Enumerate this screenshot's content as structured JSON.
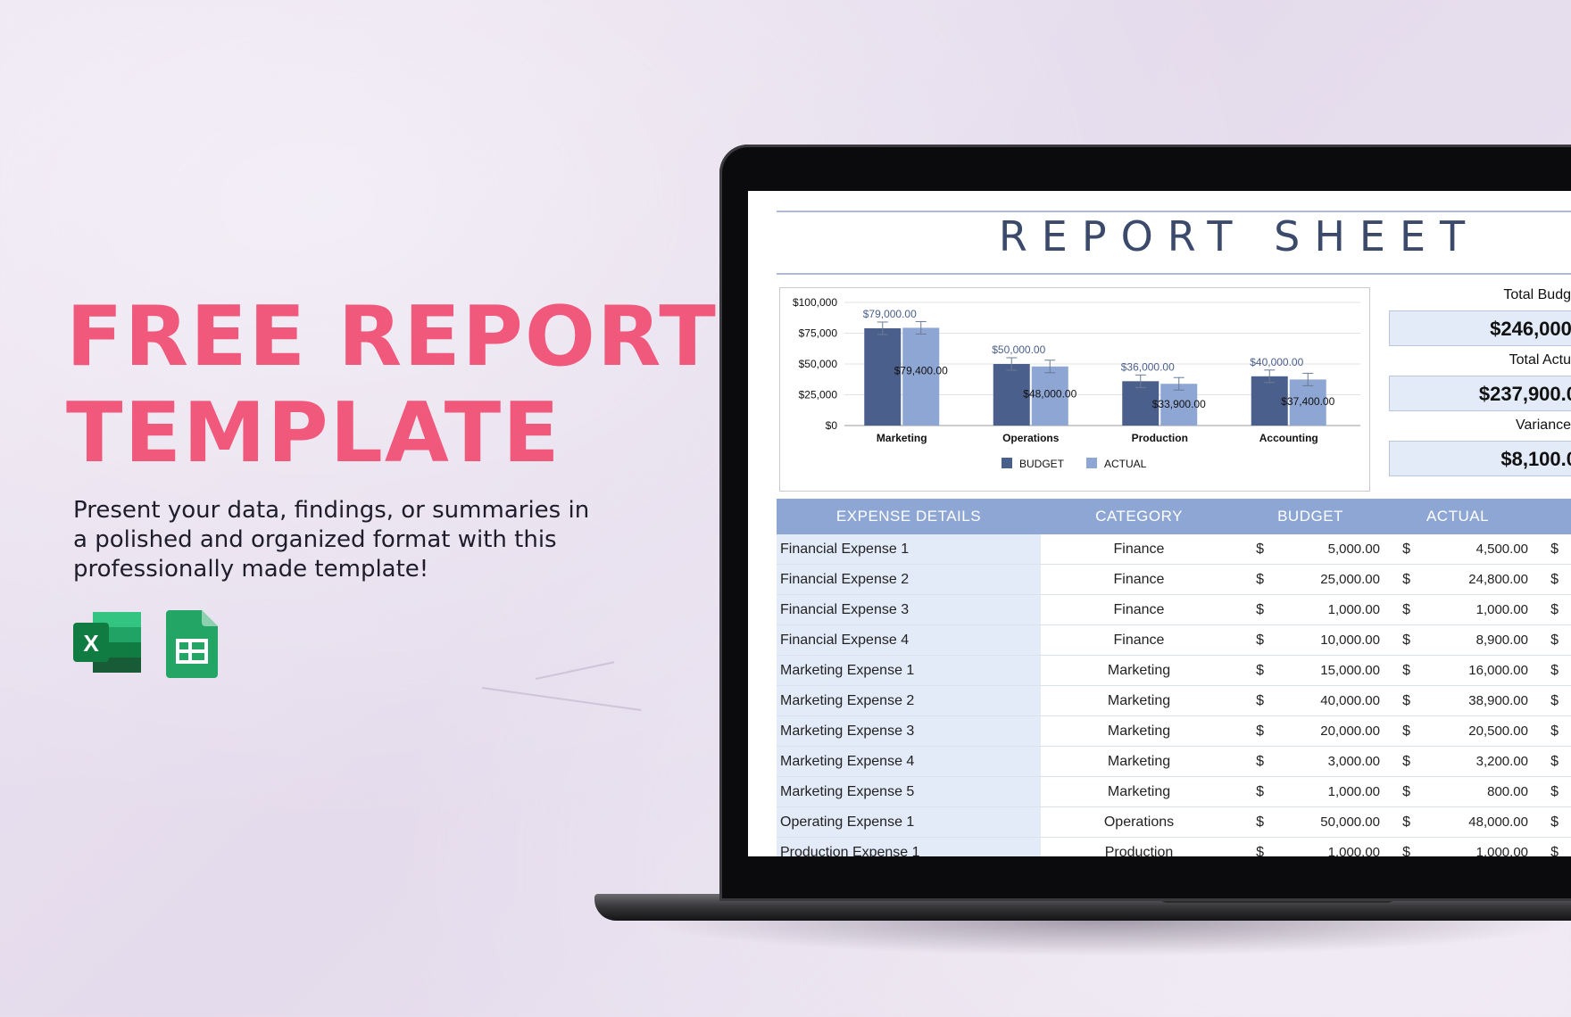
{
  "promo": {
    "headline_line1": "FREE REPORT",
    "headline_line2": "TEMPLATE",
    "tagline": "Present your data, findings, or summaries in a polished and organized format with this professionally made template!",
    "icons": [
      "excel-icon",
      "google-sheets-icon"
    ]
  },
  "sheet": {
    "title": "REPORT SHEET",
    "summary": {
      "total_budget_label": "Total Budg",
      "total_budget_value": "$246,000.",
      "total_actual_label": "Total Actu",
      "total_actual_value": "$237,900.0",
      "variance_label": "Variance",
      "variance_value": "$8,100.0"
    },
    "table": {
      "headers": [
        "EXPENSE DETAILS",
        "CATEGORY",
        "BUDGET",
        "ACTUAL"
      ],
      "rows": [
        {
          "name": "Financial Expense 1",
          "category": "Finance",
          "budget_symbol": "$",
          "budget": "5,000.00",
          "actual_symbol": "$",
          "actual": "4,500.00",
          "extra_symbol": "$"
        },
        {
          "name": "Financial Expense 2",
          "category": "Finance",
          "budget_symbol": "$",
          "budget": "25,000.00",
          "actual_symbol": "$",
          "actual": "24,800.00",
          "extra_symbol": "$"
        },
        {
          "name": "Financial Expense 3",
          "category": "Finance",
          "budget_symbol": "$",
          "budget": "1,000.00",
          "actual_symbol": "$",
          "actual": "1,000.00",
          "extra_symbol": "$"
        },
        {
          "name": "Financial Expense 4",
          "category": "Finance",
          "budget_symbol": "$",
          "budget": "10,000.00",
          "actual_symbol": "$",
          "actual": "8,900.00",
          "extra_symbol": "$"
        },
        {
          "name": "Marketing Expense 1",
          "category": "Marketing",
          "budget_symbol": "$",
          "budget": "15,000.00",
          "actual_symbol": "$",
          "actual": "16,000.00",
          "extra_symbol": "$"
        },
        {
          "name": "Marketing Expense 2",
          "category": "Marketing",
          "budget_symbol": "$",
          "budget": "40,000.00",
          "actual_symbol": "$",
          "actual": "38,900.00",
          "extra_symbol": "$"
        },
        {
          "name": "Marketing Expense 3",
          "category": "Marketing",
          "budget_symbol": "$",
          "budget": "20,000.00",
          "actual_symbol": "$",
          "actual": "20,500.00",
          "extra_symbol": "$"
        },
        {
          "name": "Marketing Expense 4",
          "category": "Marketing",
          "budget_symbol": "$",
          "budget": "3,000.00",
          "actual_symbol": "$",
          "actual": "3,200.00",
          "extra_symbol": "$"
        },
        {
          "name": "Marketing Expense 5",
          "category": "Marketing",
          "budget_symbol": "$",
          "budget": "1,000.00",
          "actual_symbol": "$",
          "actual": "800.00",
          "extra_symbol": "$"
        },
        {
          "name": "Operating Expense 1",
          "category": "Operations",
          "budget_symbol": "$",
          "budget": "50,000.00",
          "actual_symbol": "$",
          "actual": "48,000.00",
          "extra_symbol": "$"
        },
        {
          "name": "Production Expense 1",
          "category": "Production",
          "budget_symbol": "$",
          "budget": "1,000.00",
          "actual_symbol": "$",
          "actual": "1,000.00",
          "extra_symbol": "$"
        }
      ]
    }
  },
  "chart_data": {
    "type": "bar",
    "categories": [
      "Marketing",
      "Operations",
      "Production",
      "Accounting"
    ],
    "series": [
      {
        "name": "BUDGET",
        "values": [
          79000,
          50000,
          36000,
          40000
        ],
        "color": "#4b5f8c",
        "labels": [
          "$79,000.00",
          "$50,000.00",
          "$36,000.00",
          "$40,000.00"
        ]
      },
      {
        "name": "ACTUAL",
        "values": [
          79400,
          48000,
          33900,
          37400
        ],
        "color": "#8ea6d4",
        "labels": [
          "$79,400.00",
          "$48,000.00",
          "$33,900.00",
          "$37,400.00"
        ]
      }
    ],
    "yticks": [
      0,
      25000,
      50000,
      75000,
      100000
    ],
    "ytick_labels": [
      "$0",
      "$25,000",
      "$50,000",
      "$75,000",
      "$100,000"
    ],
    "ylim": [
      0,
      100000
    ],
    "error_bars": true,
    "grid": true,
    "legend": "bottom",
    "title": "",
    "xlabel": "",
    "ylabel": ""
  }
}
